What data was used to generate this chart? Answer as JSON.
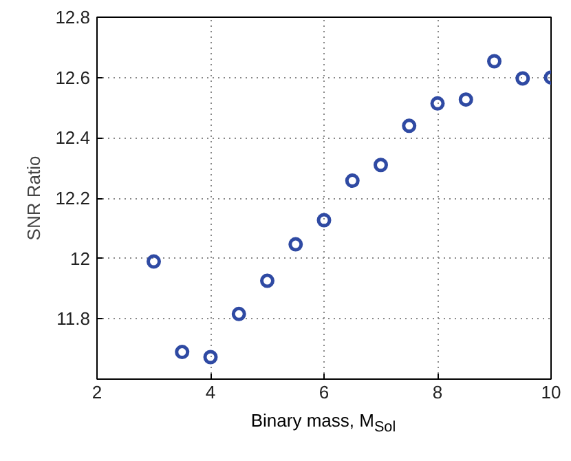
{
  "chart_data": {
    "type": "scatter",
    "xlabel": "Binary mass, M$_{Sol}$",
    "ylabel": "SNR Ratio",
    "x": [
      3,
      3.5,
      4,
      4.5,
      5,
      5.5,
      6,
      6.5,
      7,
      7.5,
      8,
      8.5,
      9,
      9.5,
      10
    ],
    "series": [
      {
        "color": "#2f4aa3",
        "values": [
          11.99,
          11.69,
          11.673,
          11.816,
          11.926,
          12.047,
          12.127,
          12.258,
          12.31,
          12.44,
          12.514,
          12.527,
          12.654,
          12.597,
          12.6
        ]
      }
    ],
    "xlim": [
      2,
      10
    ],
    "ylim": [
      11.6,
      12.8
    ],
    "xticks": [
      2,
      4,
      6,
      8,
      10
    ],
    "yticks": [
      {
        "value": 11.8,
        "label": "11.8"
      },
      {
        "value": 12,
        "label": "12"
      },
      {
        "value": 12.2,
        "label": "12.2"
      },
      {
        "value": 12.4,
        "label": "12.4"
      },
      {
        "value": 12.6,
        "label": "12.6"
      },
      {
        "value": 12.8,
        "label": "12.8"
      }
    ],
    "grid": true,
    "marker": "circle"
  }
}
